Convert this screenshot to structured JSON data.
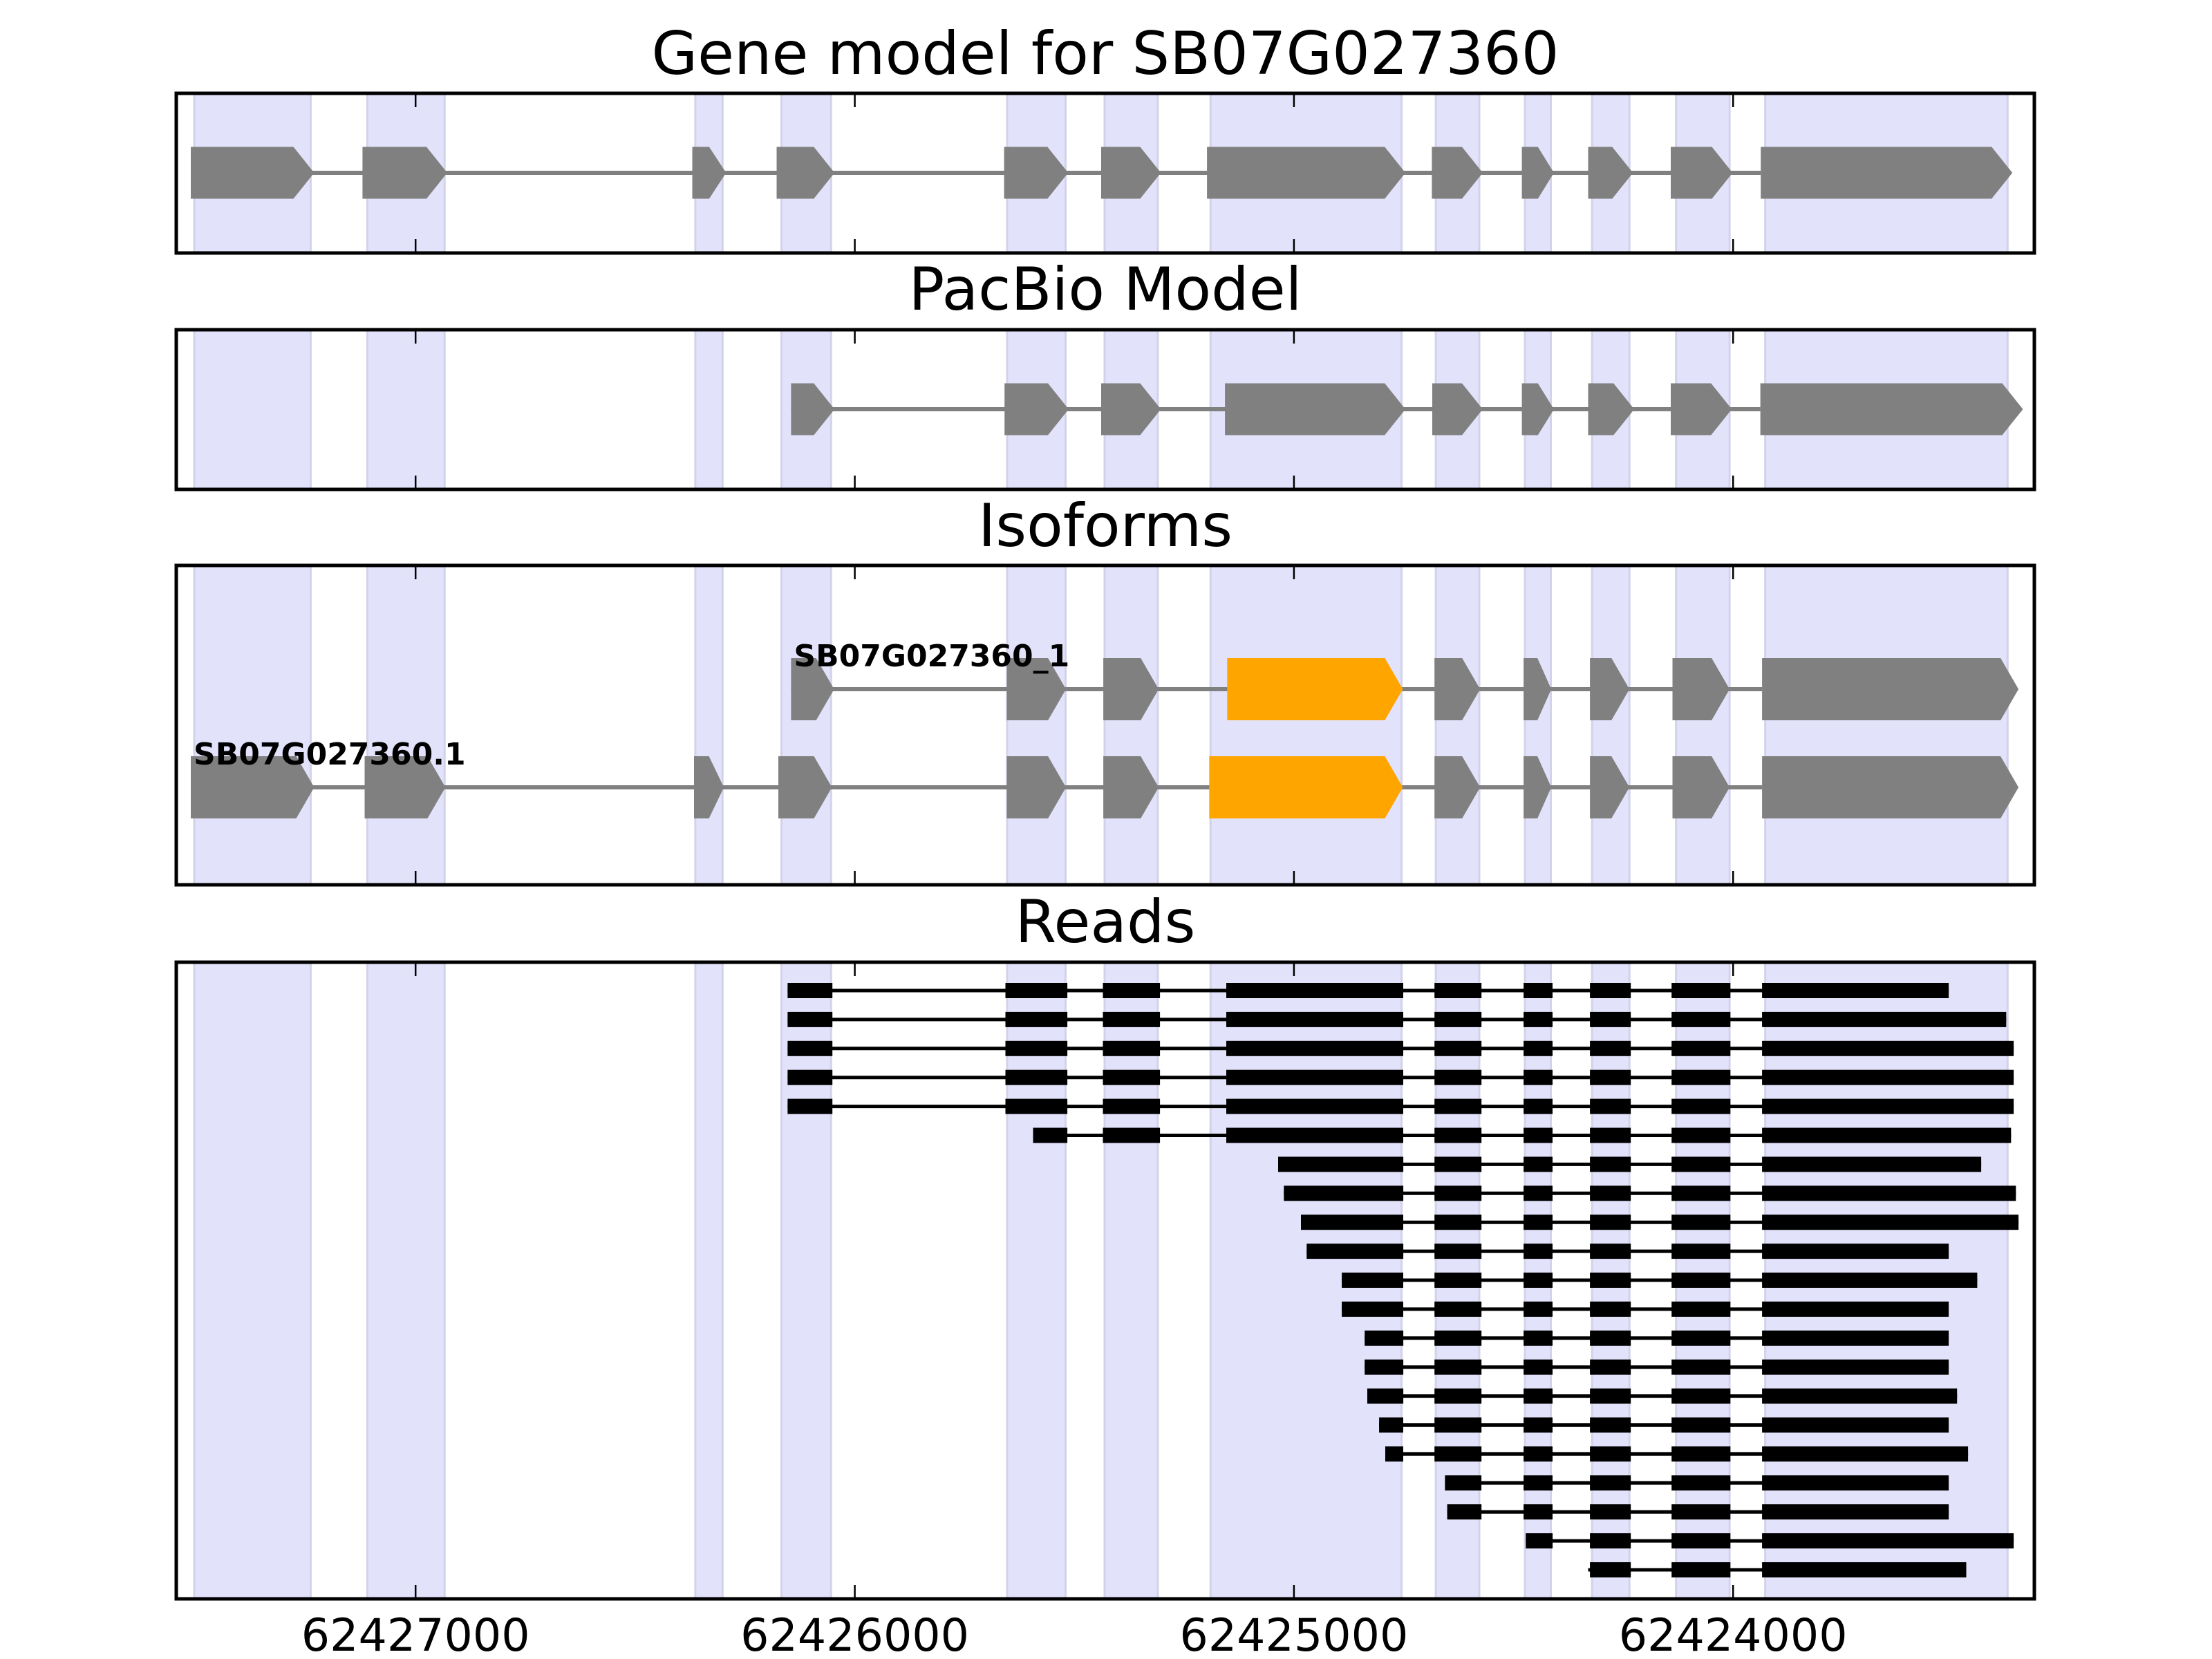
{
  "colors": {
    "background": "#ffffff",
    "exon": "#808080",
    "highlight_exon": "#ffa500",
    "band": "#e2e2fb",
    "band_edge": "#d2d2ea",
    "read": "#000000",
    "frame": "#000000"
  },
  "chart_data": {
    "type": "gene-track",
    "xlabel": "",
    "ylabel": "",
    "xlim": [
      62427545,
      62423314
    ],
    "x_inverted": true,
    "grid": false,
    "xticks": [
      62427000,
      62426000,
      62425000,
      62424000
    ],
    "xtick_labels": [
      "62427000",
      "62426000",
      "62425000",
      "62424000"
    ],
    "exon_bands": [
      [
        62427504,
        62427239
      ],
      [
        62427110,
        62426934
      ],
      [
        62426363,
        62426301
      ],
      [
        62426167,
        62426054
      ],
      [
        62425653,
        62425520
      ],
      [
        62425431,
        62425310
      ],
      [
        62425190,
        62424755
      ],
      [
        62424677,
        62424578
      ],
      [
        62424474,
        62424415
      ],
      [
        62424321,
        62424236
      ],
      [
        62424130,
        62424008
      ],
      [
        62423927,
        62423375
      ]
    ],
    "panels": [
      {
        "title": "Gene model for SB07G027360",
        "tracks": [
          {
            "exons": [
              [
                62427512,
                62427231
              ],
              [
                62427121,
                62426928
              ],
              [
                62426370,
                62426293
              ],
              [
                62426178,
                62426046
              ],
              [
                62425660,
                62425514
              ],
              [
                62425439,
                62425303
              ],
              [
                62425198,
                62424746
              ],
              [
                62424686,
                62424570
              ],
              [
                62424481,
                62424408
              ],
              [
                62424330,
                62424228
              ],
              [
                62424142,
                62424001
              ],
              [
                62423937,
                62423364
              ]
            ],
            "highlight_exons": []
          }
        ]
      },
      {
        "title": "PacBio Model",
        "tracks": [
          {
            "exons": [
              [
                62426145,
                62426046
              ],
              [
                62425659,
                62425513
              ],
              [
                62425439,
                62425303
              ],
              [
                62425157,
                62424746
              ],
              [
                62424685,
                62424570
              ],
              [
                62424481,
                62424408
              ],
              [
                62424330,
                62424225
              ],
              [
                62424142,
                62424003
              ],
              [
                62423938,
                62423340
              ]
            ],
            "highlight_exons": []
          }
        ]
      },
      {
        "title": "Isoforms",
        "tracks": [
          {
            "label": "SB07G027360_1",
            "exons": [
              [
                62426145,
                62426047
              ],
              [
                62425654,
                62425519
              ],
              [
                62425434,
                62425308
              ],
              [
                62425152,
                62424752
              ],
              [
                62424680,
                62424576
              ],
              [
                62424477,
                62424414
              ],
              [
                62424326,
                62424236
              ],
              [
                62424138,
                62424008
              ],
              [
                62423934,
                62423350
              ]
            ],
            "highlight_exons": [
              3
            ]
          },
          {
            "label": "SB07G027360.1",
            "exons": [
              [
                62427512,
                62427231
              ],
              [
                62427116,
                62426932
              ],
              [
                62426366,
                62426298
              ],
              [
                62426174,
                62426052
              ],
              [
                62425654,
                62425519
              ],
              [
                62425434,
                62425308
              ],
              [
                62425193,
                62424752
              ],
              [
                62424680,
                62424576
              ],
              [
                62424477,
                62424414
              ],
              [
                62424326,
                62424236
              ],
              [
                62424138,
                62424008
              ],
              [
                62423934,
                62423350
              ]
            ],
            "highlight_exons": [
              6
            ]
          }
        ]
      },
      {
        "title": "Reads",
        "read_blocks": [
          [
            62426153,
            62426051
          ],
          [
            62425657,
            62425516
          ],
          [
            62425435,
            62425305
          ],
          [
            62425154,
            62424751
          ],
          [
            62424680,
            62424573
          ],
          [
            62424477,
            62424411
          ],
          [
            62424326,
            62424233
          ],
          [
            62424140,
            62424006
          ],
          [
            62423934,
            62423340
          ]
        ],
        "reads": [
          {
            "start": 62426153,
            "end": 62423509
          },
          {
            "start": 62426153,
            "end": 62423378
          },
          {
            "start": 62426153,
            "end": 62423361
          },
          {
            "start": 62426153,
            "end": 62423361
          },
          {
            "start": 62426153,
            "end": 62423361
          },
          {
            "start": 62425594,
            "end": 62423367
          },
          {
            "start": 62425036,
            "end": 62423435
          },
          {
            "start": 62425023,
            "end": 62423356
          },
          {
            "start": 62424984,
            "end": 62423350
          },
          {
            "start": 62424971,
            "end": 62423509
          },
          {
            "start": 62424891,
            "end": 62423444
          },
          {
            "start": 62424891,
            "end": 62423509
          },
          {
            "start": 62424839,
            "end": 62423509
          },
          {
            "start": 62424839,
            "end": 62423509
          },
          {
            "start": 62424833,
            "end": 62423490
          },
          {
            "start": 62424806,
            "end": 62423509
          },
          {
            "start": 62424792,
            "end": 62423465
          },
          {
            "start": 62424656,
            "end": 62423509
          },
          {
            "start": 62424651,
            "end": 62423509
          },
          {
            "start": 62424472,
            "end": 62423361
          },
          {
            "start": 62424330,
            "end": 62423469
          }
        ]
      }
    ]
  }
}
